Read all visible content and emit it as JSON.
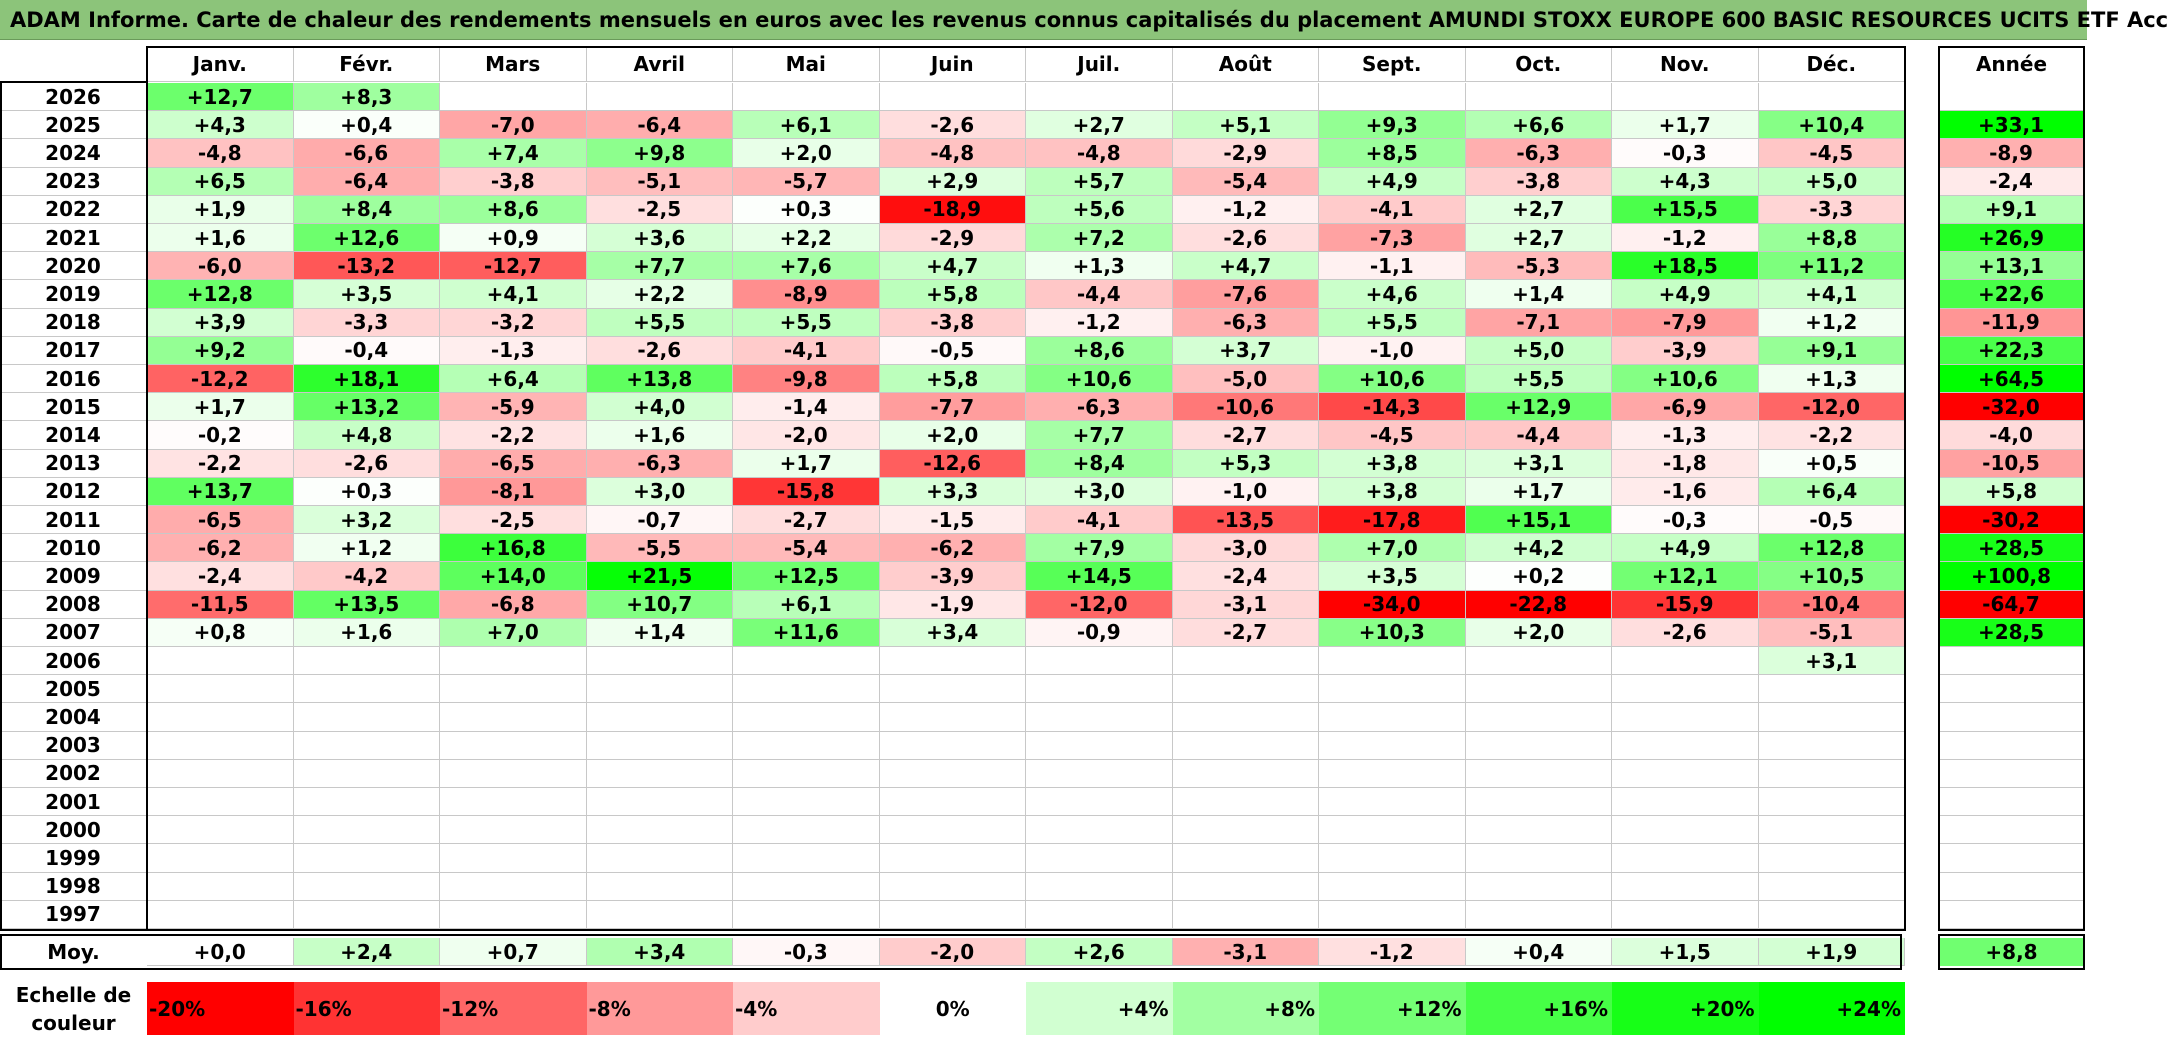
{
  "title": "ADAM Informe. Carte de chaleur des rendements mensuels en euros avec les revenus connus capitalisés du placement AMUNDI STOXX EUROPE 600 BASIC RESOURCES UCITS ETF Acc",
  "chart_data": {
    "type": "heatmap",
    "columns": [
      "Janv.",
      "Févr.",
      "Mars",
      "Avril",
      "Mai",
      "Juin",
      "Juil.",
      "Août",
      "Sept.",
      "Oct.",
      "Nov.",
      "Déc."
    ],
    "year_header": "Année",
    "rows": [
      {
        "label": "2026",
        "values": [
          "+12,7",
          "+8,3",
          "",
          "",
          "",
          "",
          "",
          "",
          "",
          "",
          "",
          ""
        ],
        "year": ""
      },
      {
        "label": "2025",
        "values": [
          "+4,3",
          "+0,4",
          "-7,0",
          "-6,4",
          "+6,1",
          "-2,6",
          "+2,7",
          "+5,1",
          "+9,3",
          "+6,6",
          "+1,7",
          "+10,4"
        ],
        "year": "+33,1"
      },
      {
        "label": "2024",
        "values": [
          "-4,8",
          "-6,6",
          "+7,4",
          "+9,8",
          "+2,0",
          "-4,8",
          "-4,8",
          "-2,9",
          "+8,5",
          "-6,3",
          "-0,3",
          "-4,5"
        ],
        "year": "-8,9"
      },
      {
        "label": "2023",
        "values": [
          "+6,5",
          "-6,4",
          "-3,8",
          "-5,1",
          "-5,7",
          "+2,9",
          "+5,7",
          "-5,4",
          "+4,9",
          "-3,8",
          "+4,3",
          "+5,0"
        ],
        "year": "-2,4"
      },
      {
        "label": "2022",
        "values": [
          "+1,9",
          "+8,4",
          "+8,6",
          "-2,5",
          "+0,3",
          "-18,9",
          "+5,6",
          "-1,2",
          "-4,1",
          "+2,7",
          "+15,5",
          "-3,3"
        ],
        "year": "+9,1"
      },
      {
        "label": "2021",
        "values": [
          "+1,6",
          "+12,6",
          "+0,9",
          "+3,6",
          "+2,2",
          "-2,9",
          "+7,2",
          "-2,6",
          "-7,3",
          "+2,7",
          "-1,2",
          "+8,8"
        ],
        "year": "+26,9"
      },
      {
        "label": "2020",
        "values": [
          "-6,0",
          "-13,2",
          "-12,7",
          "+7,7",
          "+7,6",
          "+4,7",
          "+1,3",
          "+4,7",
          "-1,1",
          "-5,3",
          "+18,5",
          "+11,2"
        ],
        "year": "+13,1"
      },
      {
        "label": "2019",
        "values": [
          "+12,8",
          "+3,5",
          "+4,1",
          "+2,2",
          "-8,9",
          "+5,8",
          "-4,4",
          "-7,6",
          "+4,6",
          "+1,4",
          "+4,9",
          "+4,1"
        ],
        "year": "+22,6"
      },
      {
        "label": "2018",
        "values": [
          "+3,9",
          "-3,3",
          "-3,2",
          "+5,5",
          "+5,5",
          "-3,8",
          "-1,2",
          "-6,3",
          "+5,5",
          "-7,1",
          "-7,9",
          "+1,2"
        ],
        "year": "-11,9"
      },
      {
        "label": "2017",
        "values": [
          "+9,2",
          "-0,4",
          "-1,3",
          "-2,6",
          "-4,1",
          "-0,5",
          "+8,6",
          "+3,7",
          "-1,0",
          "+5,0",
          "-3,9",
          "+9,1"
        ],
        "year": "+22,3"
      },
      {
        "label": "2016",
        "values": [
          "-12,2",
          "+18,1",
          "+6,4",
          "+13,8",
          "-9,8",
          "+5,8",
          "+10,6",
          "-5,0",
          "+10,6",
          "+5,5",
          "+10,6",
          "+1,3"
        ],
        "year": "+64,5"
      },
      {
        "label": "2015",
        "values": [
          "+1,7",
          "+13,2",
          "-5,9",
          "+4,0",
          "-1,4",
          "-7,7",
          "-6,3",
          "-10,6",
          "-14,3",
          "+12,9",
          "-6,9",
          "-12,0"
        ],
        "year": "-32,0"
      },
      {
        "label": "2014",
        "values": [
          "-0,2",
          "+4,8",
          "-2,2",
          "+1,6",
          "-2,0",
          "+2,0",
          "+7,7",
          "-2,7",
          "-4,5",
          "-4,4",
          "-1,3",
          "-2,2"
        ],
        "year": "-4,0"
      },
      {
        "label": "2013",
        "values": [
          "-2,2",
          "-2,6",
          "-6,5",
          "-6,3",
          "+1,7",
          "-12,6",
          "+8,4",
          "+5,3",
          "+3,8",
          "+3,1",
          "-1,8",
          "+0,5"
        ],
        "year": "-10,5"
      },
      {
        "label": "2012",
        "values": [
          "+13,7",
          "+0,3",
          "-8,1",
          "+3,0",
          "-15,8",
          "+3,3",
          "+3,0",
          "-1,0",
          "+3,8",
          "+1,7",
          "-1,6",
          "+6,4"
        ],
        "year": "+5,8"
      },
      {
        "label": "2011",
        "values": [
          "-6,5",
          "+3,2",
          "-2,5",
          "-0,7",
          "-2,7",
          "-1,5",
          "-4,1",
          "-13,5",
          "-17,8",
          "+15,1",
          "-0,3",
          "-0,5"
        ],
        "year": "-30,2"
      },
      {
        "label": "2010",
        "values": [
          "-6,2",
          "+1,2",
          "+16,8",
          "-5,5",
          "-5,4",
          "-6,2",
          "+7,9",
          "-3,0",
          "+7,0",
          "+4,2",
          "+4,9",
          "+12,8"
        ],
        "year": "+28,5"
      },
      {
        "label": "2009",
        "values": [
          "-2,4",
          "-4,2",
          "+14,0",
          "+21,5",
          "+12,5",
          "-3,9",
          "+14,5",
          "-2,4",
          "+3,5",
          "+0,2",
          "+12,1",
          "+10,5"
        ],
        "year": "+100,8"
      },
      {
        "label": "2008",
        "values": [
          "-11,5",
          "+13,5",
          "-6,8",
          "+10,7",
          "+6,1",
          "-1,9",
          "-12,0",
          "-3,1",
          "-34,0",
          "-22,8",
          "-15,9",
          "-10,4"
        ],
        "year": "-64,7"
      },
      {
        "label": "2007",
        "values": [
          "+0,8",
          "+1,6",
          "+7,0",
          "+1,4",
          "+11,6",
          "+3,4",
          "-0,9",
          "-2,7",
          "+10,3",
          "+2,0",
          "-2,6",
          "-5,1"
        ],
        "year": "+28,5"
      },
      {
        "label": "2006",
        "values": [
          "",
          "",
          "",
          "",
          "",
          "",
          "",
          "",
          "",
          "",
          "",
          "+3,1"
        ],
        "year": ""
      },
      {
        "label": "2005",
        "values": [
          "",
          "",
          "",
          "",
          "",
          "",
          "",
          "",
          "",
          "",
          "",
          ""
        ],
        "year": ""
      },
      {
        "label": "2004",
        "values": [
          "",
          "",
          "",
          "",
          "",
          "",
          "",
          "",
          "",
          "",
          "",
          ""
        ],
        "year": ""
      },
      {
        "label": "2003",
        "values": [
          "",
          "",
          "",
          "",
          "",
          "",
          "",
          "",
          "",
          "",
          "",
          ""
        ],
        "year": ""
      },
      {
        "label": "2002",
        "values": [
          "",
          "",
          "",
          "",
          "",
          "",
          "",
          "",
          "",
          "",
          "",
          ""
        ],
        "year": ""
      },
      {
        "label": "2001",
        "values": [
          "",
          "",
          "",
          "",
          "",
          "",
          "",
          "",
          "",
          "",
          "",
          ""
        ],
        "year": ""
      },
      {
        "label": "2000",
        "values": [
          "",
          "",
          "",
          "",
          "",
          "",
          "",
          "",
          "",
          "",
          "",
          ""
        ],
        "year": ""
      },
      {
        "label": "1999",
        "values": [
          "",
          "",
          "",
          "",
          "",
          "",
          "",
          "",
          "",
          "",
          "",
          ""
        ],
        "year": ""
      },
      {
        "label": "1998",
        "values": [
          "",
          "",
          "",
          "",
          "",
          "",
          "",
          "",
          "",
          "",
          "",
          ""
        ],
        "year": ""
      },
      {
        "label": "1997",
        "values": [
          "",
          "",
          "",
          "",
          "",
          "",
          "",
          "",
          "",
          "",
          "",
          ""
        ],
        "year": ""
      }
    ],
    "average": {
      "label": "Moy.",
      "values": [
        "+0,0",
        "+2,4",
        "+0,7",
        "+3,4",
        "-0,3",
        "-2,0",
        "+2,6",
        "-3,1",
        "-1,2",
        "+0,4",
        "+1,5",
        "+1,9"
      ],
      "year": "+8,8"
    },
    "scale": {
      "label": "Echelle de couleur",
      "values": [
        -20,
        -16,
        -12,
        -8,
        -4,
        0,
        4,
        8,
        12,
        16,
        20,
        24
      ],
      "labels": [
        "-20%",
        "-16%",
        "-12%",
        "-8%",
        "-4%",
        "0%",
        "+4%",
        "+8%",
        "+12%",
        "+16%",
        "+20%",
        "+24%"
      ]
    },
    "colors": {
      "negative_max": "#ff0000",
      "positive_max": "#00ff00",
      "neutral": "#ffffff",
      "title_bg": "#8cc47a"
    },
    "color_range": [
      -20,
      24
    ]
  }
}
